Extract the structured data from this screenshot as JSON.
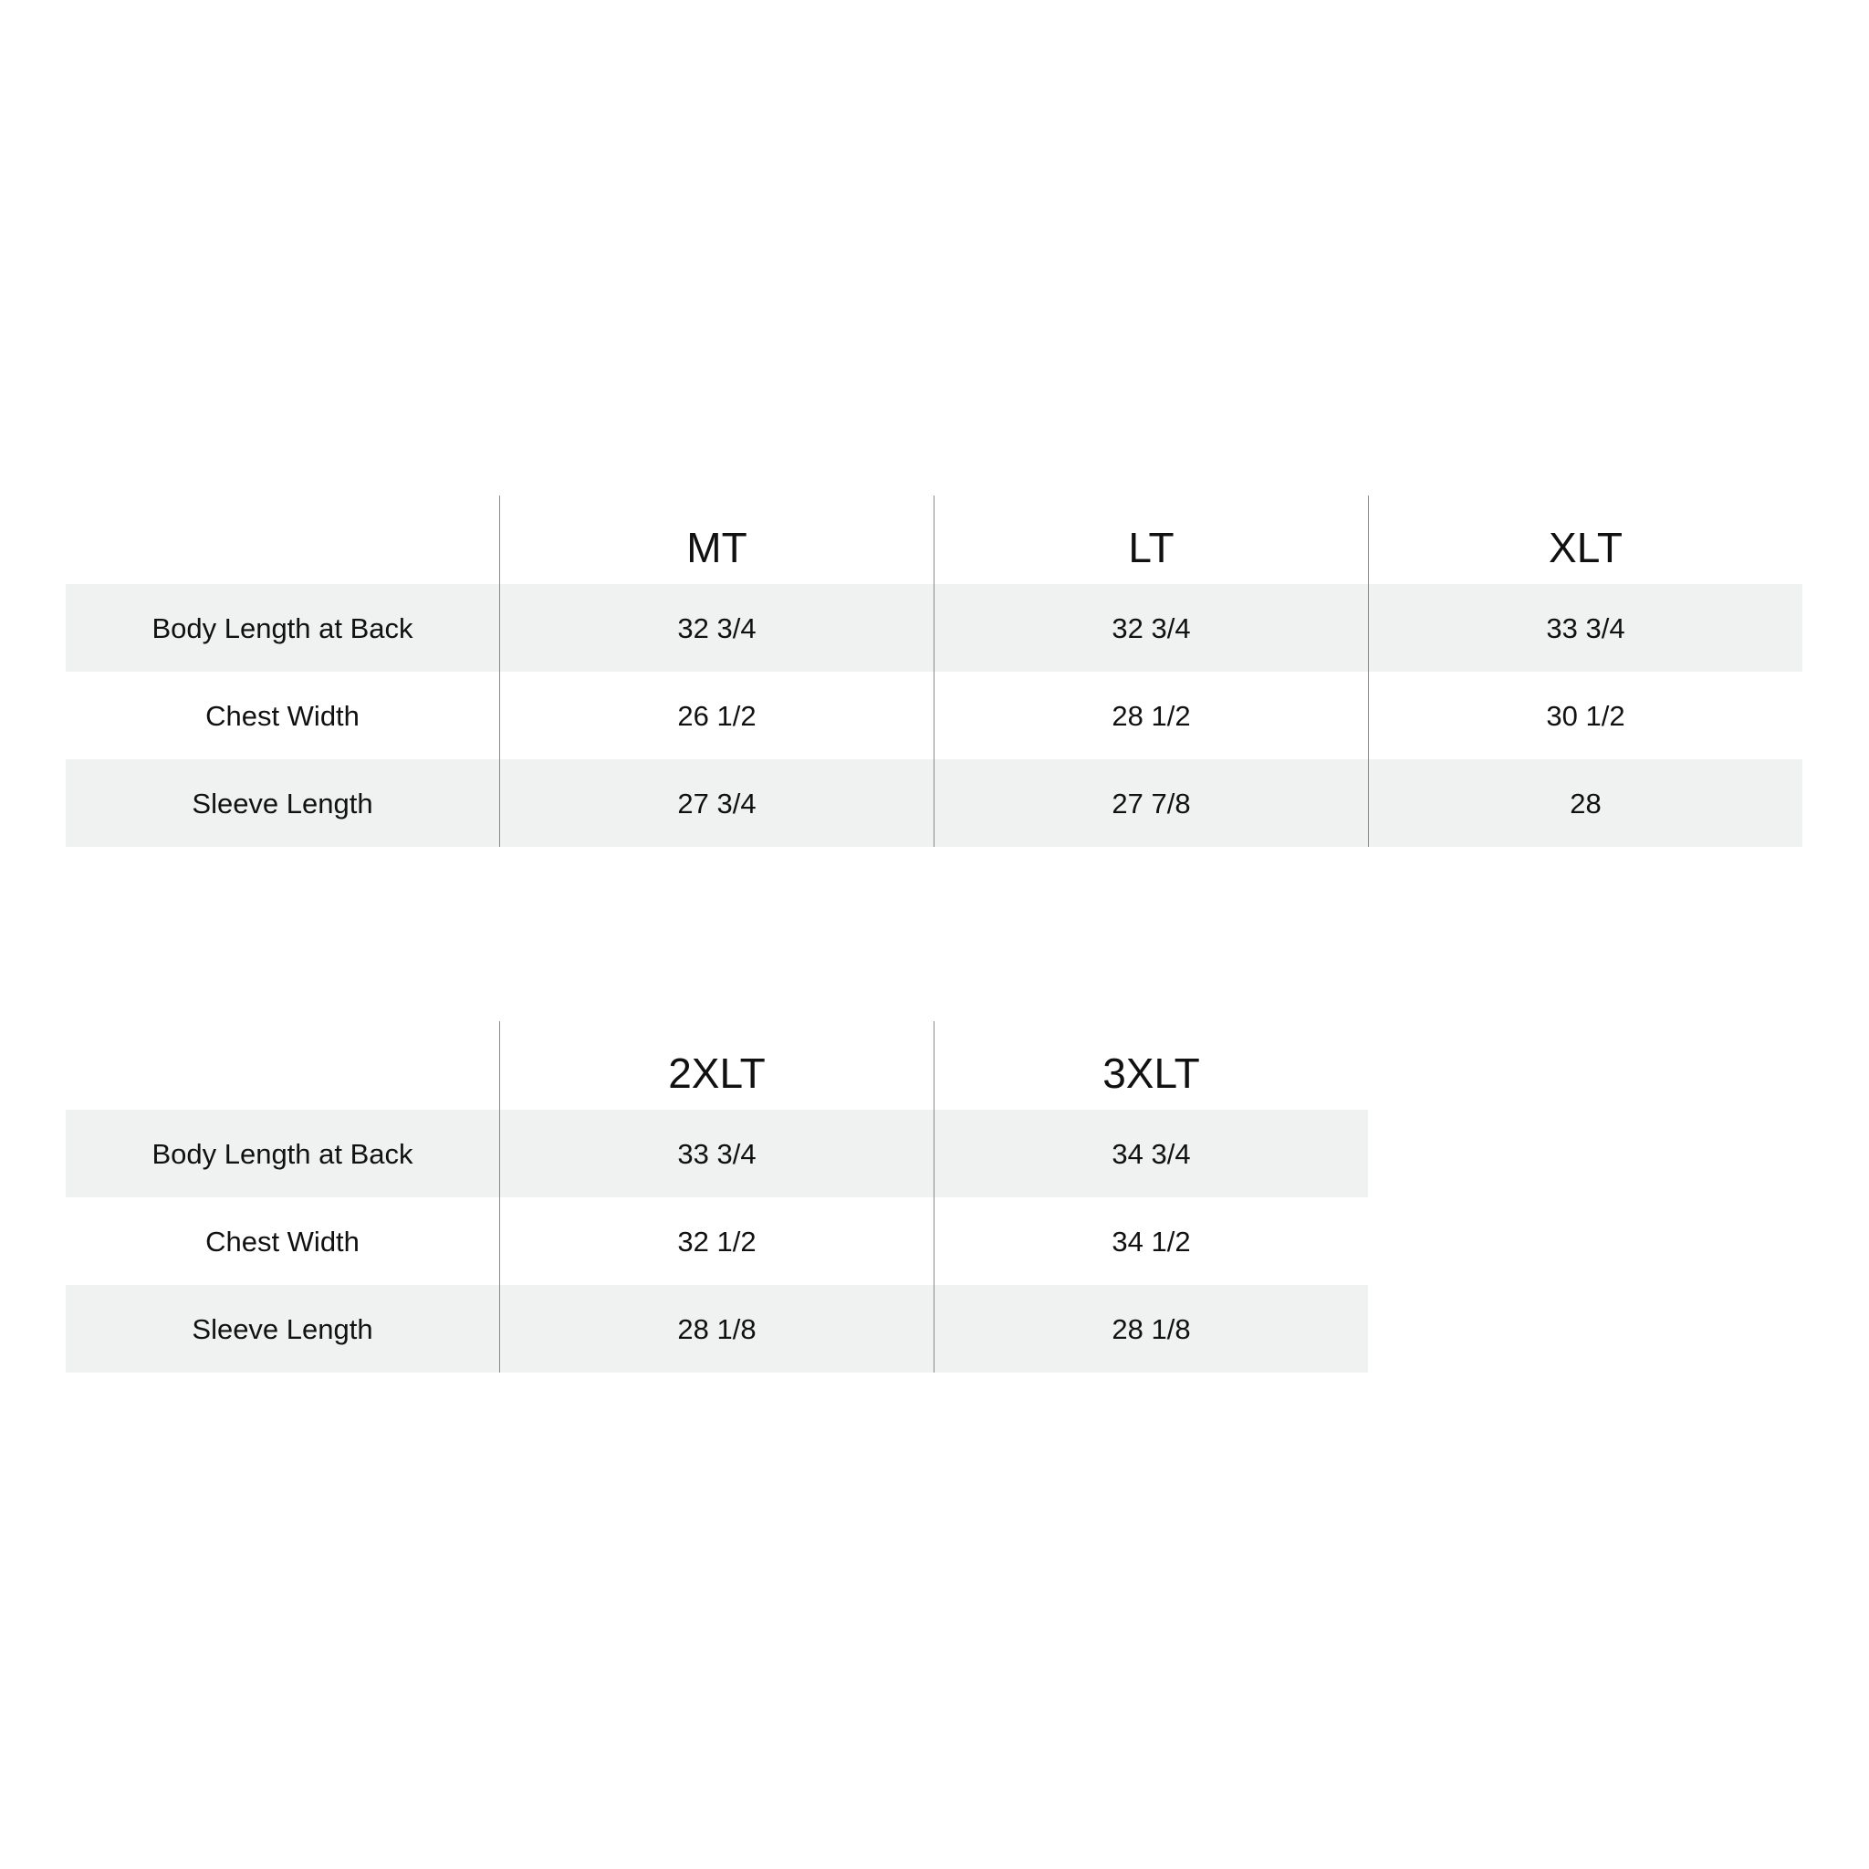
{
  "tables": [
    {
      "sizes": [
        "MT",
        "LT",
        "XLT"
      ],
      "rows": [
        {
          "label": "Body Length at Back",
          "values": [
            "32 3/4",
            "32 3/4",
            "33 3/4"
          ]
        },
        {
          "label": "Chest Width",
          "values": [
            "26 1/2",
            "28 1/2",
            "30 1/2"
          ]
        },
        {
          "label": "Sleeve Length",
          "values": [
            "27 3/4",
            "27 7/8",
            "28"
          ]
        }
      ]
    },
    {
      "sizes": [
        "2XLT",
        "3XLT"
      ],
      "rows": [
        {
          "label": "Body Length at Back",
          "values": [
            "33 3/4",
            "34 3/4"
          ]
        },
        {
          "label": "Chest Width",
          "values": [
            "32 1/2",
            "34 1/2"
          ]
        },
        {
          "label": "Sleeve Length",
          "values": [
            "28 1/8",
            "28 1/8"
          ]
        }
      ]
    }
  ],
  "colors": {
    "shade": "#f0f2f1",
    "divider": "#8a8a8a",
    "text": "#111111"
  }
}
